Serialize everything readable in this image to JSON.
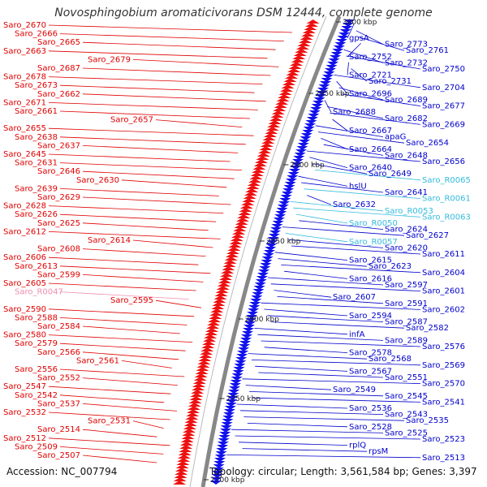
{
  "title": "Novosphingobium aromaticivorans DSM 12444, complete genome",
  "accession": "Accession: NC_007794",
  "summary": "Topology: circular; Length: 3,561,584 bp; Genes: 3,397",
  "colors": {
    "left": "#e00000",
    "left_rna": "#f08cb0",
    "right": "#0000cc",
    "right_rna": "#33bbdd",
    "backbone": "#888888"
  },
  "ticks": [
    "3000 kbp",
    "2950 kbp",
    "2900 kbp",
    "2850 kbp",
    "2800 kbp",
    "2750 kbp",
    "2700 kbp"
  ],
  "left_labels": [
    "Saro_2670",
    "Saro_2666",
    "Saro_2665",
    "Saro_2663",
    "Saro_2679",
    "Saro_2687",
    "Saro_2678",
    "Saro_2673",
    "Saro_2662",
    "Saro_2671",
    "Saro_2661",
    "Saro_2657",
    "Saro_2655",
    "Saro_2638",
    "Saro_2637",
    "Saro_2645",
    "Saro_2631",
    "Saro_2646",
    "Saro_2630",
    "Saro_2639",
    "Saro_2629",
    "Saro_2628",
    "Saro_2626",
    "Saro_2625",
    "Saro_2612",
    "Saro_2614",
    "Saro_2608",
    "Saro_2606",
    "Saro_2613",
    "Saro_2599",
    "Saro_2605",
    "Saro_R0047",
    "Saro_2595",
    "Saro_2590",
    "Saro_2588",
    "Saro_2584",
    "Saro_2580",
    "Saro_2579",
    "Saro_2566",
    "Saro_2561",
    "Saro_2556",
    "Saro_2552",
    "Saro_2547",
    "Saro_2542",
    "Saro_2537",
    "Saro_2532",
    "Saro_2531",
    "Saro_2514",
    "Saro_2512",
    "Saro_2509",
    "Saro_2507"
  ],
  "right_labels": [
    "gpsA",
    "Saro_2773",
    "Saro_2761",
    "Saro_2752",
    "Saro_2732",
    "Saro_2750",
    "Saro_2721",
    "Saro_2731",
    "Saro_2704",
    "Saro_2696",
    "Saro_2689",
    "Saro_2677",
    "Saro_2688",
    "Saro_2682",
    "Saro_2669",
    "Saro_2667",
    "apaG",
    "Saro_2654",
    "Saro_2664",
    "Saro_2648",
    "Saro_2656",
    "Saro_2640",
    "Saro_2649",
    "Saro_R0065",
    "hslU",
    "Saro_2641",
    "Saro_R0061",
    "Saro_2632",
    "Saro_R0053",
    "Saro_R0063",
    "Saro_R0050",
    "Saro_2624",
    "Saro_2627",
    "Saro_R0057",
    "Saro_2620",
    "Saro_2611",
    "Saro_2615",
    "Saro_2623",
    "Saro_2604",
    "Saro_2616",
    "Saro_2597",
    "Saro_2601",
    "Saro_2607",
    "Saro_2591",
    "Saro_2602",
    "Saro_2594",
    "Saro_2587",
    "Saro_2582",
    "infA",
    "Saro_2589",
    "Saro_2576",
    "Saro_2578",
    "Saro_2568",
    "Saro_2569",
    "Saro_2567",
    "Saro_2551",
    "Saro_2570",
    "Saro_2549",
    "Saro_2545",
    "Saro_2541",
    "Saro_2536",
    "Saro_2543",
    "Saro_2535",
    "Saro_2528",
    "Saro_2525",
    "Saro_2523",
    "rplQ",
    "rpsM",
    "Saro_2513"
  ],
  "pink_labels": [
    "Saro_R0047"
  ],
  "cyan_labels": [
    "Saro_R0065",
    "Saro_R0061",
    "Saro_R0053",
    "Saro_R0063",
    "Saro_R0050",
    "Saro_R0057"
  ]
}
